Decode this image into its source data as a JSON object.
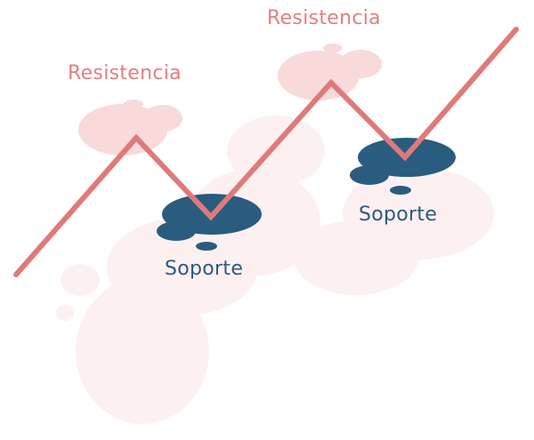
{
  "labels": {
    "resistance_1": "Resistencia",
    "resistance_2": "Resistencia",
    "support_1": "Soporte",
    "support_2": "Soporte"
  },
  "colors": {
    "line": "#e07a7a",
    "resistance_text": "#e07f7f",
    "resistance_blob": "#f8dada",
    "support_blob": "#2a5c80",
    "support_text": "#2c5a7d",
    "background_splash": "#fdf0f0"
  }
}
